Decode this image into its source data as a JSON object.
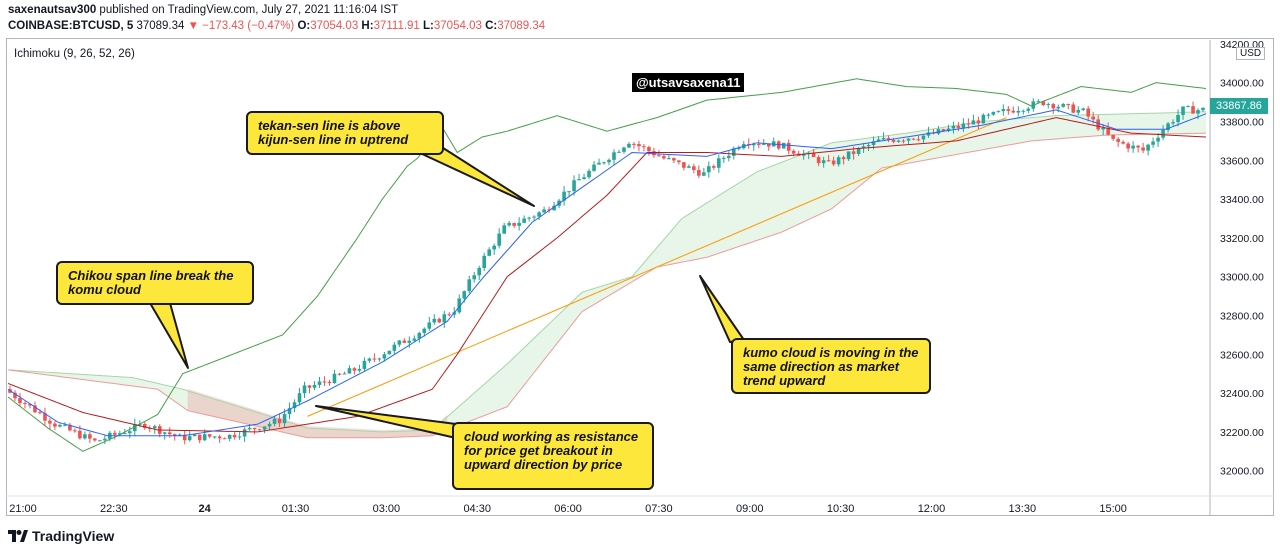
{
  "header": {
    "publisher_name": "saxenautsav300",
    "publisher_rest": " published on TradingView.com, July 27, 2021 11:16:04 IST",
    "symbol": "COINBASE:BTCUSD, 5",
    "last": "37089.34",
    "change": "▼ −173.43 (−0.47%)",
    "o_label": "O:",
    "o": "37054.03",
    "h_label": "H:",
    "h": "37111.91",
    "l_label": "L:",
    "l": "37054.03",
    "c_label": "C:",
    "c": "37089.34"
  },
  "indicator_label": "Ichimoku (9, 26, 52, 26)",
  "watermark_tag": "@utsavsaxena11",
  "price_tag": "33867.86",
  "currency": "USD",
  "annotations": {
    "tekan": "tekan-sen line is above kijun-sen line in uptrend",
    "chikou": "Chikou span line break the komu cloud",
    "kumo": "kumo cloud is moving in the same direction as market trend upward",
    "cloud_resist": "cloud working as resistance for price get breakout in upward direction by price"
  },
  "footer": {
    "brand": "TradingView"
  },
  "colors": {
    "up": "#26a69a",
    "down": "#ef5350",
    "tenkan": "#2962ff",
    "kijun": "#b71c1c",
    "chikou": "#43a047",
    "span_a": "#a5d6a7",
    "span_b": "#ef9a9a",
    "trend": "#ff9800"
  },
  "chart_data": {
    "type": "line",
    "title": "",
    "y_ticks": [
      "34200.00",
      "34000.00",
      "33800.00",
      "33600.00",
      "33400.00",
      "33200.00",
      "33000.00",
      "32800.00",
      "32600.00",
      "32400.00",
      "32200.00",
      "32000.00"
    ],
    "x_ticks": [
      "21:00",
      "22:30",
      "24",
      "01:30",
      "03:00",
      "04:30",
      "06:00",
      "07:30",
      "09:00",
      "10:30",
      "12:00",
      "13:30",
      "15:00"
    ],
    "ylim": [
      31880,
      34220
    ],
    "x_domain": [
      0,
      240
    ],
    "price_anchors": [
      [
        0,
        32420
      ],
      [
        10,
        32240
      ],
      [
        18,
        32150
      ],
      [
        28,
        32240
      ],
      [
        35,
        32170
      ],
      [
        45,
        32180
      ],
      [
        55,
        32260
      ],
      [
        60,
        32420
      ],
      [
        70,
        32520
      ],
      [
        82,
        32700
      ],
      [
        90,
        32830
      ],
      [
        95,
        33060
      ],
      [
        100,
        33250
      ],
      [
        108,
        33340
      ],
      [
        115,
        33500
      ],
      [
        120,
        33600
      ],
      [
        125,
        33700
      ],
      [
        132,
        33610
      ],
      [
        140,
        33530
      ],
      [
        148,
        33700
      ],
      [
        155,
        33680
      ],
      [
        165,
        33580
      ],
      [
        175,
        33700
      ],
      [
        185,
        33730
      ],
      [
        192,
        33780
      ],
      [
        200,
        33850
      ],
      [
        208,
        33900
      ],
      [
        216,
        33850
      ],
      [
        222,
        33700
      ],
      [
        228,
        33650
      ],
      [
        232,
        33760
      ],
      [
        236,
        33860
      ],
      [
        240,
        33860
      ]
    ],
    "tenkan_anchors": [
      [
        0,
        32420
      ],
      [
        10,
        32250
      ],
      [
        20,
        32180
      ],
      [
        35,
        32180
      ],
      [
        50,
        32240
      ],
      [
        60,
        32360
      ],
      [
        75,
        32560
      ],
      [
        88,
        32770
      ],
      [
        95,
        32990
      ],
      [
        105,
        33280
      ],
      [
        115,
        33460
      ],
      [
        125,
        33640
      ],
      [
        140,
        33620
      ],
      [
        150,
        33690
      ],
      [
        165,
        33660
      ],
      [
        180,
        33720
      ],
      [
        195,
        33780
      ],
      [
        210,
        33860
      ],
      [
        222,
        33760
      ],
      [
        232,
        33760
      ],
      [
        240,
        33840
      ]
    ],
    "kijun_anchors": [
      [
        0,
        32450
      ],
      [
        15,
        32300
      ],
      [
        30,
        32210
      ],
      [
        50,
        32200
      ],
      [
        60,
        32240
      ],
      [
        70,
        32280
      ],
      [
        85,
        32420
      ],
      [
        90,
        32600
      ],
      [
        100,
        33000
      ],
      [
        110,
        33200
      ],
      [
        120,
        33420
      ],
      [
        128,
        33640
      ],
      [
        140,
        33640
      ],
      [
        155,
        33620
      ],
      [
        170,
        33660
      ],
      [
        190,
        33700
      ],
      [
        210,
        33820
      ],
      [
        225,
        33740
      ],
      [
        240,
        33720
      ]
    ],
    "chikou_anchors": [
      [
        0,
        32380
      ],
      [
        8,
        32220
      ],
      [
        15,
        32100
      ],
      [
        22,
        32180
      ],
      [
        30,
        32290
      ],
      [
        35,
        32500
      ],
      [
        45,
        32600
      ],
      [
        55,
        32700
      ],
      [
        62,
        32900
      ],
      [
        70,
        33200
      ],
      [
        75,
        33400
      ],
      [
        80,
        33570
      ],
      [
        82,
        33610
      ],
      [
        87,
        33770
      ],
      [
        90,
        33640
      ],
      [
        95,
        33720
      ],
      [
        100,
        33750
      ],
      [
        110,
        33830
      ],
      [
        120,
        33750
      ],
      [
        130,
        33820
      ],
      [
        140,
        33910
      ],
      [
        155,
        33950
      ],
      [
        170,
        34020
      ],
      [
        180,
        33980
      ],
      [
        190,
        33970
      ],
      [
        200,
        33940
      ],
      [
        205,
        33880
      ],
      [
        215,
        33980
      ],
      [
        225,
        33950
      ],
      [
        230,
        34000
      ],
      [
        240,
        33970
      ]
    ],
    "span_a_anchors": [
      [
        0,
        32520
      ],
      [
        25,
        32480
      ],
      [
        35,
        32420
      ],
      [
        60,
        32220
      ],
      [
        75,
        32200
      ],
      [
        85,
        32210
      ],
      [
        100,
        32550
      ],
      [
        115,
        32920
      ],
      [
        125,
        33000
      ],
      [
        135,
        33300
      ],
      [
        150,
        33540
      ],
      [
        165,
        33690
      ],
      [
        180,
        33740
      ],
      [
        195,
        33800
      ],
      [
        210,
        33830
      ],
      [
        225,
        33840
      ],
      [
        240,
        33850
      ]
    ],
    "span_b_anchors": [
      [
        0,
        32520
      ],
      [
        30,
        32420
      ],
      [
        36,
        32310
      ],
      [
        60,
        32170
      ],
      [
        75,
        32170
      ],
      [
        85,
        32180
      ],
      [
        100,
        32330
      ],
      [
        115,
        32820
      ],
      [
        130,
        33050
      ],
      [
        140,
        33100
      ],
      [
        155,
        33230
      ],
      [
        165,
        33350
      ],
      [
        175,
        33560
      ],
      [
        190,
        33630
      ],
      [
        205,
        33700
      ],
      [
        220,
        33730
      ],
      [
        240,
        33740
      ]
    ],
    "trend_line": [
      [
        60,
        32280
      ],
      [
        200,
        33820
      ]
    ]
  }
}
